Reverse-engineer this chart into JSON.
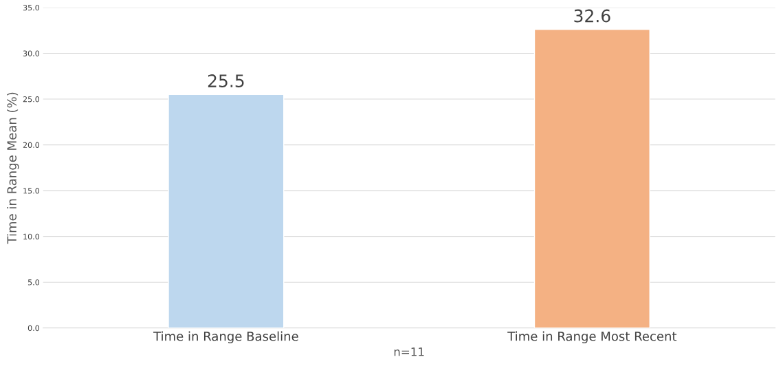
{
  "chart_data": {
    "type": "bar",
    "xlabel": "n=11",
    "ylabel": "Time in Range Mean (%)",
    "categories": [
      "Time in Range Baseline",
      "Time in Range Most Recent"
    ],
    "values": [
      25.5,
      32.6
    ],
    "colors": [
      "#bdd7ee",
      "#f4b183"
    ],
    "data_labels": true,
    "ylim": [
      0,
      35
    ],
    "yticks": [
      {
        "value": 0,
        "label": "0.0"
      },
      {
        "value": 5,
        "label": "5.0"
      },
      {
        "value": 10,
        "label": "10.0"
      },
      {
        "value": 15,
        "label": "15.0"
      },
      {
        "value": 20,
        "label": "20.0"
      },
      {
        "value": 25,
        "label": "25.0"
      },
      {
        "value": 30,
        "label": "30.0"
      },
      {
        "value": 35,
        "label": "35.0"
      }
    ],
    "grid": "y"
  }
}
